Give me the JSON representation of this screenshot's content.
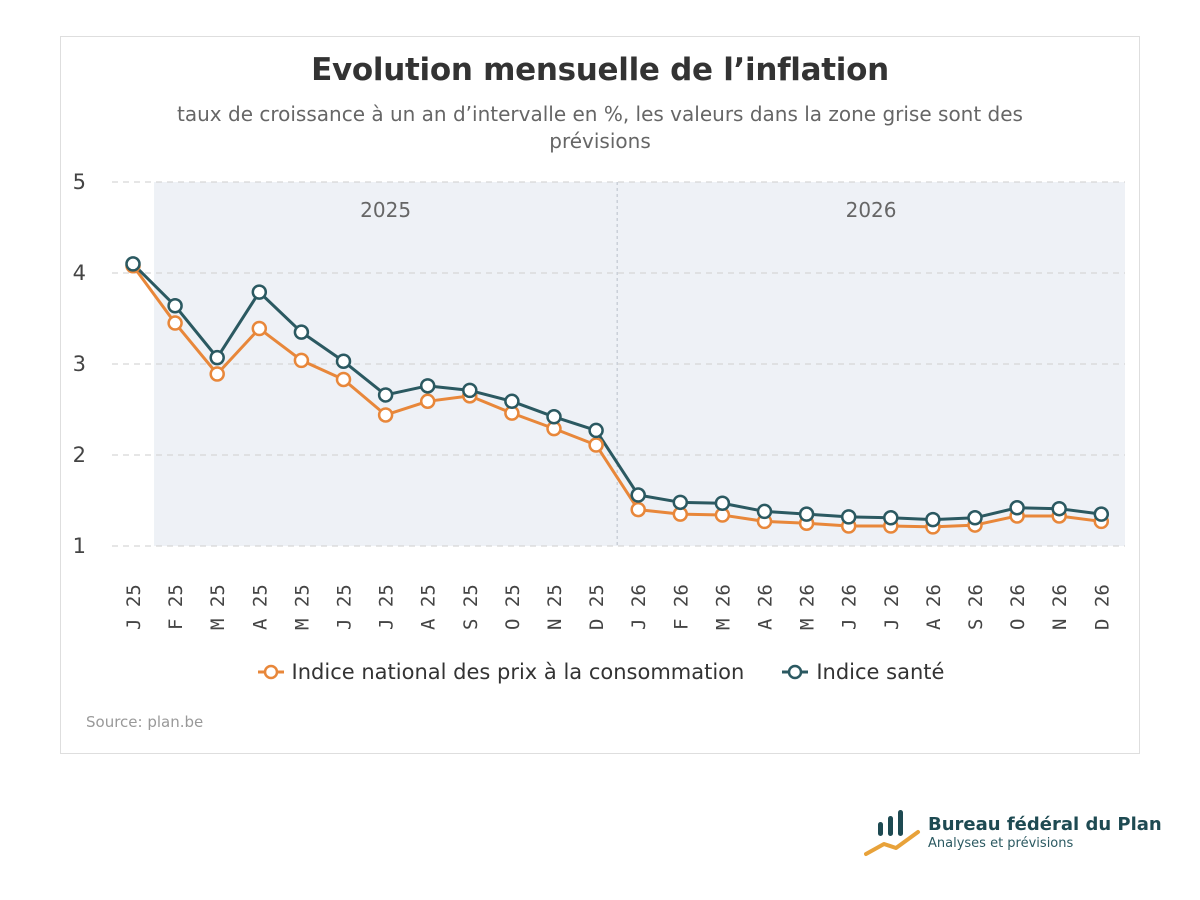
{
  "chart_data": {
    "type": "line",
    "title": "Evolution mensuelle de l’inflation",
    "subtitle": "taux de croissance à un an d’intervalle en %, les valeurs dans la zone grise sont des prévisions",
    "categories": [
      "J 25",
      "F 25",
      "M 25",
      "A 25",
      "M 25",
      "J 25",
      "J 25",
      "A 25",
      "S 25",
      "O 25",
      "N 25",
      "D 25",
      "J 26",
      "F 26",
      "M 26",
      "A 26",
      "M 26",
      "J 26",
      "J 26",
      "A 26",
      "S 26",
      "O 26",
      "N 26",
      "D 26"
    ],
    "series": [
      {
        "name": "Indice national des prix à la consommation",
        "color": "#e8873a",
        "values": [
          4.08,
          3.45,
          2.89,
          3.39,
          3.04,
          2.83,
          2.44,
          2.59,
          2.65,
          2.46,
          2.29,
          2.11,
          1.4,
          1.35,
          1.34,
          1.27,
          1.25,
          1.22,
          1.22,
          1.21,
          1.23,
          1.33,
          1.33,
          1.27
        ]
      },
      {
        "name": "Indice santé",
        "color": "#2b5961",
        "values": [
          4.1,
          3.64,
          3.07,
          3.79,
          3.35,
          3.03,
          2.66,
          2.76,
          2.71,
          2.59,
          2.42,
          2.27,
          1.56,
          1.48,
          1.47,
          1.38,
          1.35,
          1.32,
          1.31,
          1.29,
          1.31,
          1.42,
          1.41,
          1.35
        ]
      }
    ],
    "ylim": [
      1,
      5
    ],
    "yticks": [
      1,
      2,
      3,
      4,
      5
    ],
    "forecast_start_index": 1,
    "year_labels": [
      {
        "label": "2025",
        "start_index": 0,
        "end_index": 11
      },
      {
        "label": "2026",
        "start_index": 12,
        "end_index": 23
      }
    ],
    "year_divider_between": [
      11,
      12
    ],
    "grid": true,
    "legend": "bottom-center",
    "source": "Source: plan.be"
  },
  "logo": {
    "name": "Bureau fédéral du Plan",
    "tagline": "Analyses et prévisions",
    "bar_color": "#1e4a52",
    "accent_color": "#e8a23a"
  }
}
